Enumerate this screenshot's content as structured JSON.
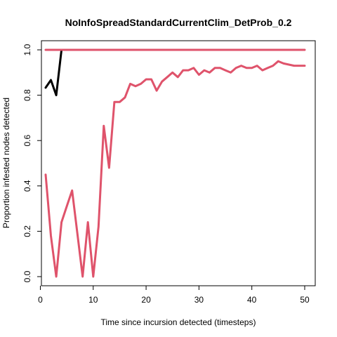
{
  "chart_data": {
    "type": "line",
    "title": "NoInfoSpreadStandardCurrentClim_DetProb_0.2",
    "xlabel": "Time since incursion detected (timesteps)",
    "ylabel": "Proportion infested nodes detected",
    "xlim": [
      0,
      50
    ],
    "ylim": [
      0,
      1
    ],
    "xticks": [
      "0",
      "10",
      "20",
      "30",
      "40",
      "50"
    ],
    "yticks": [
      "0.0",
      "0.2",
      "0.4",
      "0.6",
      "0.8",
      "1.0"
    ],
    "grid": false,
    "legend": "none",
    "series": [
      {
        "color": "#000000",
        "x": [
          1,
          2,
          3,
          4
        ],
        "y": [
          0.833,
          0.867,
          0.8,
          1.0
        ]
      },
      {
        "color": "#DF536B",
        "x": [
          1,
          50
        ],
        "y": [
          1.0,
          1.0
        ]
      },
      {
        "color": "#DF536B",
        "x": [
          1,
          2,
          3,
          4,
          5,
          6,
          7,
          8,
          9,
          10,
          11,
          12,
          13,
          14,
          15,
          16,
          17,
          18,
          19,
          20,
          21,
          22,
          23,
          24,
          25,
          26,
          27,
          28,
          29,
          30,
          31,
          32,
          33,
          34,
          35,
          36,
          37,
          38,
          39,
          40,
          41,
          42,
          43,
          44,
          45,
          46,
          47,
          48,
          49,
          50
        ],
        "y": [
          0.45,
          0.18,
          0.0,
          0.24,
          0.31,
          0.38,
          0.19,
          0.0,
          0.24,
          0.0,
          0.22,
          0.665,
          0.48,
          0.77,
          0.77,
          0.79,
          0.85,
          0.84,
          0.85,
          0.87,
          0.87,
          0.82,
          0.86,
          0.88,
          0.9,
          0.88,
          0.91,
          0.91,
          0.92,
          0.89,
          0.91,
          0.9,
          0.92,
          0.92,
          0.91,
          0.9,
          0.92,
          0.93,
          0.92,
          0.92,
          0.93,
          0.91,
          0.92,
          0.93,
          0.95,
          0.94,
          0.935,
          0.93,
          0.93,
          0.93
        ]
      }
    ]
  }
}
